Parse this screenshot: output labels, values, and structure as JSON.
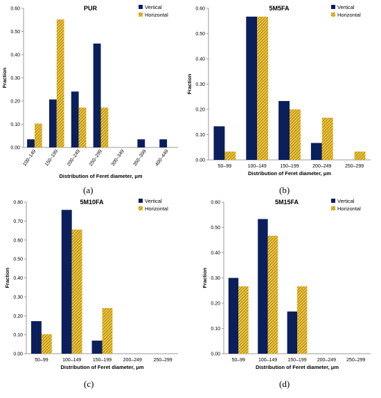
{
  "panel_labels": [
    "(a)",
    "(b)",
    "(c)",
    "(d)"
  ],
  "colors": {
    "vertical": "#0a1f5c",
    "horizontal": "#d4a017"
  },
  "chart_data": [
    {
      "type": "bar",
      "title": "PUR",
      "xlabel": "Distribution of Feret diameter, μm",
      "ylabel": "Fraction",
      "ylim": [
        0,
        0.6
      ],
      "yticks": [
        "0.00",
        "0.10",
        "0.20",
        "0.30",
        "0.40",
        "0.50",
        "0.60"
      ],
      "legend_position": "top-right",
      "categories": [
        "100–149",
        "150–199",
        "200–249",
        "250–299",
        "300–349",
        "350–399",
        "400–449"
      ],
      "series": [
        {
          "name": "Vertical",
          "values": [
            0.035,
            0.207,
            0.241,
            0.448,
            0,
            0.035,
            0.035
          ]
        },
        {
          "name": "Horizontal",
          "values": [
            0.103,
            0.552,
            0.172,
            0.172,
            0,
            0,
            0
          ]
        }
      ]
    },
    {
      "type": "bar",
      "title": "5M5FA",
      "xlabel": "Distribution of Feret diameter, μm",
      "ylabel": "Fraction",
      "ylim": [
        0,
        0.6
      ],
      "yticks": [
        "0.00",
        "0.10",
        "0.20",
        "0.30",
        "0.40",
        "0.50",
        "0.60"
      ],
      "legend_position": "top-right",
      "categories": [
        "50–99",
        "100–149",
        "150–199",
        "200–249",
        "250–299"
      ],
      "series": [
        {
          "name": "Vertical",
          "values": [
            0.133,
            0.567,
            0.233,
            0.067,
            0
          ]
        },
        {
          "name": "Horizontal",
          "values": [
            0.033,
            0.567,
            0.2,
            0.167,
            0.033
          ]
        }
      ]
    },
    {
      "type": "bar",
      "title": "5M10FA",
      "xlabel": "Distribution of Feret diameter, μm",
      "ylabel": "Fraction",
      "ylim": [
        0,
        0.8
      ],
      "yticks": [
        "0.00",
        "0.10",
        "0.20",
        "0.30",
        "0.40",
        "0.50",
        "0.60",
        "0.70",
        "0.80"
      ],
      "legend_position": "top-right",
      "categories": [
        "50–99",
        "100–149",
        "150–199",
        "200–249",
        "250–299"
      ],
      "series": [
        {
          "name": "Vertical",
          "values": [
            0.172,
            0.759,
            0.069,
            0,
            0
          ]
        },
        {
          "name": "Horizontal",
          "values": [
            0.103,
            0.655,
            0.241,
            0,
            0
          ]
        }
      ]
    },
    {
      "type": "bar",
      "title": "5M15FA",
      "xlabel": "Distribution of Feret diameter, μm",
      "ylabel": "Fraction",
      "ylim": [
        0,
        0.6
      ],
      "yticks": [
        "0.00",
        "0.10",
        "0.20",
        "0.30",
        "0.40",
        "0.50",
        "0.60"
      ],
      "legend_position": "top-right",
      "categories": [
        "50–99",
        "100–149",
        "150–199",
        "200–249",
        "250–299"
      ],
      "series": [
        {
          "name": "Vertical",
          "values": [
            0.3,
            0.533,
            0.167,
            0,
            0
          ]
        },
        {
          "name": "Horizontal",
          "values": [
            0.267,
            0.467,
            0.267,
            0,
            0
          ]
        }
      ]
    }
  ]
}
